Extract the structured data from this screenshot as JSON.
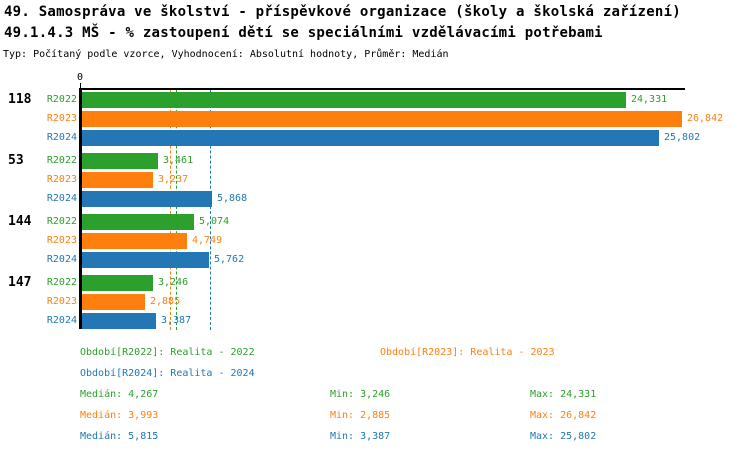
{
  "header": {
    "title_line1": "49. Samospráva ve školství - příspěvkové organizace (školy a školská zařízení)",
    "title_line2": "49.1.4.3 MŠ - % zastoupení dětí se speciálními vzdělávacími potřebami",
    "meta_line": "Typ: Počítaný podle vzorce, Vyhodnocení: Absolutní hodnoty, Průměr: Medián"
  },
  "colors": {
    "series_R2022": "#2CA02C",
    "series_R2023": "#FF7F0E",
    "series_R2024": "#2277B4",
    "axis": "#000000",
    "background": "#FFFFFF"
  },
  "chart_data": {
    "type": "bar",
    "orientation": "horizontal",
    "xlim": [
      0,
      26.842
    ],
    "x_tick_labels": [
      "0"
    ],
    "grid": false,
    "series": [
      {
        "name": "R2022",
        "color_key": "series_R2022"
      },
      {
        "name": "R2023",
        "color_key": "series_R2023"
      },
      {
        "name": "R2024",
        "color_key": "series_R2024"
      }
    ],
    "groups": [
      {
        "label": "118",
        "values": [
          24.331,
          26.842,
          25.802
        ],
        "value_labels": [
          "24,331",
          "26,842",
          "25,802"
        ]
      },
      {
        "label": "53",
        "values": [
          3.461,
          3.237,
          5.868
        ],
        "value_labels": [
          "3,461",
          "3,237",
          "5,868"
        ]
      },
      {
        "label": "144",
        "values": [
          5.074,
          4.749,
          5.762
        ],
        "value_labels": [
          "5,074",
          "4,749",
          "5,762"
        ]
      },
      {
        "label": "147",
        "values": [
          3.246,
          2.885,
          3.387
        ],
        "value_labels": [
          "3,246",
          "2,885",
          "3,387"
        ]
      }
    ],
    "median_lines": [
      {
        "series": "R2022",
        "value": 4.267
      },
      {
        "series": "R2023",
        "value": 3.993
      },
      {
        "series": "R2024",
        "value": 5.815
      }
    ],
    "stats": {
      "R2022": {
        "median": 4.267,
        "min": 3.246,
        "max": 24.331
      },
      "R2023": {
        "median": 3.993,
        "min": 2.885,
        "max": 26.842
      },
      "R2024": {
        "median": 5.815,
        "min": 3.387,
        "max": 25.802
      }
    }
  },
  "legend": {
    "r2022": "Období[R2022]: Realita - 2022",
    "r2023": "Období[R2023]: Realita - 2023",
    "r2024": "Období[R2024]: Realita - 2024"
  },
  "stats_text": {
    "rows": [
      {
        "series": "R2022",
        "median": "Medián: 4,267",
        "min": "Min: 3,246",
        "max": "Max: 24,331"
      },
      {
        "series": "R2023",
        "median": "Medián: 3,993",
        "min": "Min: 2,885",
        "max": "Max: 26,842"
      },
      {
        "series": "R2024",
        "median": "Medián: 5,815",
        "min": "Min: 3,387",
        "max": "Max: 25,802"
      }
    ]
  }
}
